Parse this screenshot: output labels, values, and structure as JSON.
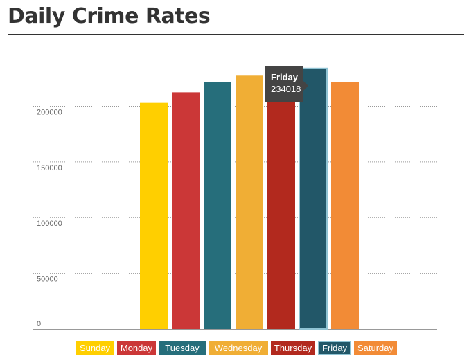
{
  "chart_data": {
    "type": "bar",
    "title": "Daily Crime Rates",
    "categories": [
      "Sunday",
      "Monday",
      "Tuesday",
      "Wednesday",
      "Thursday",
      "Friday",
      "Saturday"
    ],
    "values": [
      203000,
      212500,
      221500,
      227500,
      225000,
      234018,
      222000
    ],
    "colors": [
      "#ffcf00",
      "#cb3737",
      "#266e7b",
      "#f0ae35",
      "#b2291e",
      "#225768",
      "#f28b36"
    ],
    "ylim": [
      0,
      237000
    ],
    "yticks": [
      0,
      50000,
      100000,
      150000,
      200000
    ],
    "grid": true,
    "legend": "bottom",
    "selected": "Friday",
    "tooltip": {
      "name": "Friday",
      "value": "234018"
    }
  }
}
